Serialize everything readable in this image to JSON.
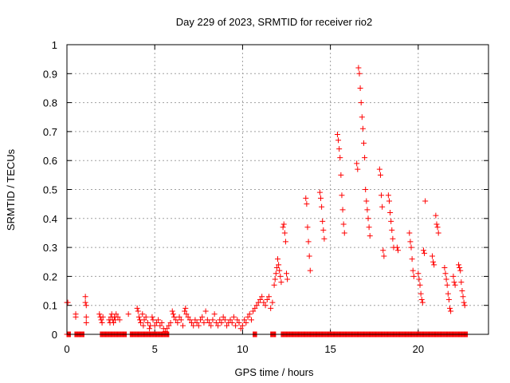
{
  "chart_data": {
    "type": "scatter",
    "title": "Day 229 of 2023, SRMTID for receiver rio2",
    "xlabel": "GPS time / hours",
    "ylabel": "SRMTID / TECUs",
    "xlim": [
      0,
      24
    ],
    "ylim": [
      0,
      1
    ],
    "x_ticks": [
      0,
      5,
      10,
      15,
      20
    ],
    "x_tick_labels": [
      "0",
      "5",
      "10",
      "15",
      "20"
    ],
    "y_ticks": [
      0,
      0.1,
      0.2,
      0.3,
      0.4,
      0.5,
      0.6,
      0.7,
      0.8,
      0.9,
      1
    ],
    "y_tick_labels": [
      "0",
      "0.1",
      "0.2",
      "0.3",
      "0.4",
      "0.5",
      "0.6",
      "0.7",
      "0.8",
      "0.9",
      "1"
    ],
    "grid": true,
    "marker": "+",
    "color": "#ff0000",
    "series": [
      {
        "name": "SRMTID",
        "points": [
          [
            0.0,
            0.11
          ],
          [
            0.05,
            0.11
          ],
          [
            0.5,
            0.07
          ],
          [
            0.5,
            0.06
          ],
          [
            1.05,
            0.13
          ],
          [
            1.05,
            0.11
          ],
          [
            1.1,
            0.1
          ],
          [
            1.1,
            0.06
          ],
          [
            1.1,
            0.04
          ],
          [
            1.85,
            0.07
          ],
          [
            1.9,
            0.06
          ],
          [
            1.95,
            0.05
          ],
          [
            2.0,
            0.04
          ],
          [
            2.05,
            0.06
          ],
          [
            2.4,
            0.05
          ],
          [
            2.45,
            0.04
          ],
          [
            2.5,
            0.06
          ],
          [
            2.55,
            0.07
          ],
          [
            2.6,
            0.05
          ],
          [
            2.65,
            0.04
          ],
          [
            2.7,
            0.06
          ],
          [
            2.75,
            0.05
          ],
          [
            2.8,
            0.07
          ],
          [
            2.9,
            0.06
          ],
          [
            3.0,
            0.05
          ],
          [
            3.5,
            0.07
          ],
          [
            4.0,
            0.09
          ],
          [
            4.05,
            0.08
          ],
          [
            4.1,
            0.06
          ],
          [
            4.15,
            0.05
          ],
          [
            4.2,
            0.04
          ],
          [
            4.3,
            0.07
          ],
          [
            4.35,
            0.03
          ],
          [
            4.4,
            0.05
          ],
          [
            4.5,
            0.06
          ],
          [
            4.6,
            0.04
          ],
          [
            4.7,
            0.02
          ],
          [
            4.75,
            0.03
          ],
          [
            4.85,
            0.06
          ],
          [
            4.9,
            0.05
          ],
          [
            5.0,
            0.03
          ],
          [
            5.1,
            0.04
          ],
          [
            5.2,
            0.05
          ],
          [
            5.3,
            0.03
          ],
          [
            5.4,
            0.04
          ],
          [
            5.5,
            0.02
          ],
          [
            5.6,
            0.01
          ],
          [
            5.7,
            0.02
          ],
          [
            5.8,
            0.03
          ],
          [
            5.9,
            0.04
          ],
          [
            6.0,
            0.08
          ],
          [
            6.05,
            0.07
          ],
          [
            6.1,
            0.06
          ],
          [
            6.2,
            0.05
          ],
          [
            6.3,
            0.04
          ],
          [
            6.4,
            0.06
          ],
          [
            6.5,
            0.05
          ],
          [
            6.6,
            0.03
          ],
          [
            6.7,
            0.08
          ],
          [
            6.75,
            0.09
          ],
          [
            6.8,
            0.07
          ],
          [
            6.9,
            0.06
          ],
          [
            7.0,
            0.05
          ],
          [
            7.1,
            0.04
          ],
          [
            7.2,
            0.03
          ],
          [
            7.3,
            0.05
          ],
          [
            7.4,
            0.04
          ],
          [
            7.5,
            0.03
          ],
          [
            7.6,
            0.05
          ],
          [
            7.7,
            0.06
          ],
          [
            7.8,
            0.04
          ],
          [
            7.9,
            0.08
          ],
          [
            8.0,
            0.05
          ],
          [
            8.1,
            0.04
          ],
          [
            8.2,
            0.03
          ],
          [
            8.3,
            0.05
          ],
          [
            8.4,
            0.07
          ],
          [
            8.5,
            0.04
          ],
          [
            8.6,
            0.03
          ],
          [
            8.7,
            0.05
          ],
          [
            8.8,
            0.04
          ],
          [
            8.9,
            0.06
          ],
          [
            9.0,
            0.05
          ],
          [
            9.1,
            0.03
          ],
          [
            9.2,
            0.04
          ],
          [
            9.3,
            0.05
          ],
          [
            9.4,
            0.04
          ],
          [
            9.5,
            0.06
          ],
          [
            9.6,
            0.03
          ],
          [
            9.7,
            0.05
          ],
          [
            9.8,
            0.04
          ],
          [
            9.9,
            0.02
          ],
          [
            10.0,
            0.03
          ],
          [
            10.1,
            0.05
          ],
          [
            10.2,
            0.04
          ],
          [
            10.3,
            0.06
          ],
          [
            10.4,
            0.07
          ],
          [
            10.5,
            0.05
          ],
          [
            10.6,
            0.08
          ],
          [
            10.7,
            0.09
          ],
          [
            10.8,
            0.1
          ],
          [
            10.9,
            0.11
          ],
          [
            11.0,
            0.12
          ],
          [
            11.1,
            0.13
          ],
          [
            11.2,
            0.11
          ],
          [
            11.3,
            0.1
          ],
          [
            11.4,
            0.12
          ],
          [
            11.5,
            0.13
          ],
          [
            11.6,
            0.09
          ],
          [
            11.7,
            0.11
          ],
          [
            11.8,
            0.17
          ],
          [
            11.85,
            0.19
          ],
          [
            11.9,
            0.21
          ],
          [
            11.95,
            0.23
          ],
          [
            12.0,
            0.26
          ],
          [
            12.05,
            0.24
          ],
          [
            12.1,
            0.22
          ],
          [
            12.15,
            0.2
          ],
          [
            12.2,
            0.18
          ],
          [
            12.3,
            0.37
          ],
          [
            12.35,
            0.38
          ],
          [
            12.4,
            0.35
          ],
          [
            12.45,
            0.32
          ],
          [
            12.5,
            0.21
          ],
          [
            12.55,
            0.19
          ],
          [
            13.6,
            0.47
          ],
          [
            13.65,
            0.45
          ],
          [
            13.7,
            0.37
          ],
          [
            13.75,
            0.32
          ],
          [
            13.8,
            0.27
          ],
          [
            13.85,
            0.22
          ],
          [
            14.4,
            0.49
          ],
          [
            14.45,
            0.47
          ],
          [
            14.5,
            0.44
          ],
          [
            14.55,
            0.39
          ],
          [
            14.6,
            0.36
          ],
          [
            14.65,
            0.33
          ],
          [
            15.4,
            0.69
          ],
          [
            15.45,
            0.67
          ],
          [
            15.5,
            0.64
          ],
          [
            15.55,
            0.61
          ],
          [
            15.6,
            0.55
          ],
          [
            15.65,
            0.48
          ],
          [
            15.7,
            0.43
          ],
          [
            15.75,
            0.38
          ],
          [
            15.8,
            0.35
          ],
          [
            16.5,
            0.59
          ],
          [
            16.55,
            0.57
          ],
          [
            16.6,
            0.92
          ],
          [
            16.65,
            0.9
          ],
          [
            16.7,
            0.85
          ],
          [
            16.75,
            0.8
          ],
          [
            16.8,
            0.75
          ],
          [
            16.85,
            0.71
          ],
          [
            16.9,
            0.66
          ],
          [
            16.95,
            0.61
          ],
          [
            17.0,
            0.5
          ],
          [
            17.05,
            0.46
          ],
          [
            17.1,
            0.43
          ],
          [
            17.15,
            0.4
          ],
          [
            17.2,
            0.37
          ],
          [
            17.25,
            0.34
          ],
          [
            17.8,
            0.57
          ],
          [
            17.85,
            0.55
          ],
          [
            17.9,
            0.48
          ],
          [
            17.95,
            0.44
          ],
          [
            18.0,
            0.29
          ],
          [
            18.05,
            0.27
          ],
          [
            18.3,
            0.48
          ],
          [
            18.35,
            0.46
          ],
          [
            18.4,
            0.42
          ],
          [
            18.45,
            0.39
          ],
          [
            18.5,
            0.36
          ],
          [
            18.55,
            0.33
          ],
          [
            18.6,
            0.3
          ],
          [
            18.8,
            0.3
          ],
          [
            18.85,
            0.29
          ],
          [
            19.5,
            0.35
          ],
          [
            19.55,
            0.32
          ],
          [
            19.6,
            0.3
          ],
          [
            19.65,
            0.26
          ],
          [
            19.7,
            0.22
          ],
          [
            19.75,
            0.2
          ],
          [
            20.0,
            0.21
          ],
          [
            20.05,
            0.19
          ],
          [
            20.1,
            0.17
          ],
          [
            20.15,
            0.14
          ],
          [
            20.2,
            0.12
          ],
          [
            20.25,
            0.11
          ],
          [
            20.3,
            0.29
          ],
          [
            20.35,
            0.28
          ],
          [
            20.4,
            0.46
          ],
          [
            20.8,
            0.27
          ],
          [
            20.85,
            0.25
          ],
          [
            20.9,
            0.24
          ],
          [
            21.0,
            0.41
          ],
          [
            21.05,
            0.38
          ],
          [
            21.1,
            0.37
          ],
          [
            21.15,
            0.35
          ],
          [
            21.5,
            0.23
          ],
          [
            21.55,
            0.21
          ],
          [
            21.6,
            0.19
          ],
          [
            21.65,
            0.17
          ],
          [
            21.7,
            0.14
          ],
          [
            21.75,
            0.12
          ],
          [
            21.8,
            0.09
          ],
          [
            21.85,
            0.08
          ],
          [
            22.0,
            0.2
          ],
          [
            22.05,
            0.18
          ],
          [
            22.1,
            0.17
          ],
          [
            22.3,
            0.24
          ],
          [
            22.35,
            0.23
          ],
          [
            22.4,
            0.22
          ],
          [
            22.45,
            0.18
          ],
          [
            22.5,
            0.15
          ],
          [
            22.55,
            0.13
          ],
          [
            22.6,
            0.11
          ],
          [
            22.65,
            0.1
          ]
        ],
        "zero_runs": [
          [
            0.0,
            0.2
          ],
          [
            0.45,
            1.0
          ],
          [
            1.9,
            3.4
          ],
          [
            3.6,
            5.8
          ],
          [
            10.6,
            10.8
          ],
          [
            11.6,
            11.9
          ],
          [
            12.2,
            22.8
          ]
        ]
      }
    ]
  }
}
